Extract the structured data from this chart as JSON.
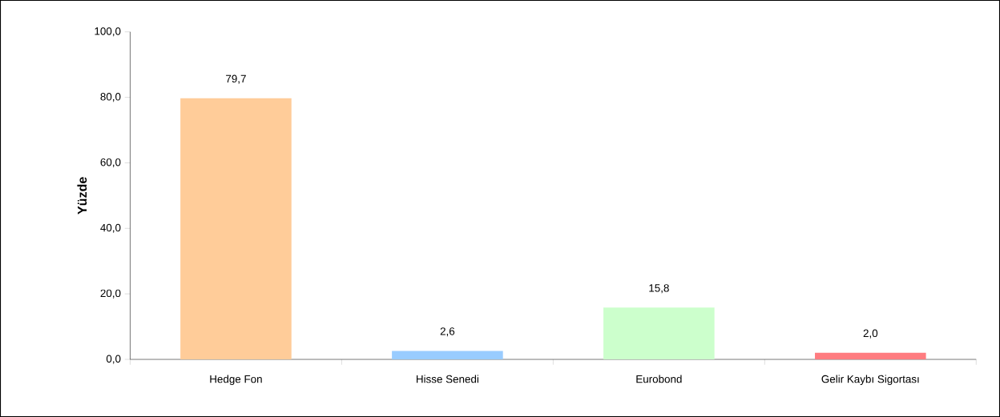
{
  "chart_data": {
    "type": "bar",
    "ylabel": "Yüzde",
    "categories": [
      "Hedge Fon",
      "Hisse Senedi",
      "Eurobond",
      "Gelir Kaybı Sigortası"
    ],
    "values": [
      79.7,
      2.6,
      15.8,
      2.0
    ],
    "value_labels": [
      "79,7",
      "2,6",
      "15,8",
      "2,0"
    ],
    "colors": [
      "#ffcc99",
      "#99ccff",
      "#ccffcc",
      "#ff7c80"
    ],
    "ylim": [
      0,
      100
    ],
    "yticks": [
      {
        "value": 0,
        "label": "0,0"
      },
      {
        "value": 20,
        "label": "20,0"
      },
      {
        "value": 40,
        "label": "40,0"
      },
      {
        "value": 60,
        "label": "60,0"
      },
      {
        "value": 80,
        "label": "80,0"
      },
      {
        "value": 100,
        "label": "100,0"
      }
    ]
  }
}
